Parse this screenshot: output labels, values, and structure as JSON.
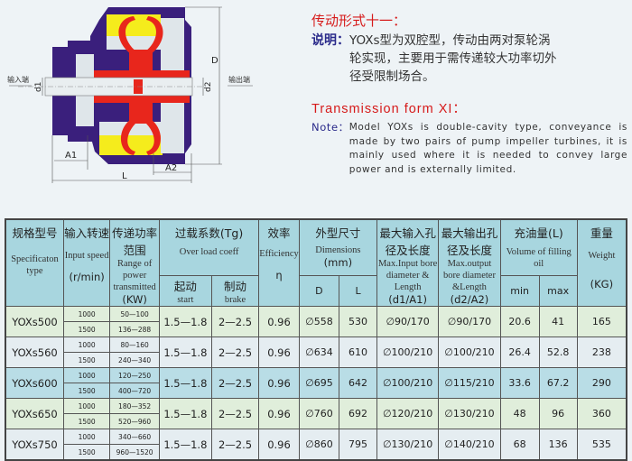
{
  "diagram": {
    "input_label": "输入端",
    "output_label": "输出端",
    "dims": {
      "d1": "d1",
      "d2": "d2",
      "D": "D",
      "A1": "A1",
      "A2": "A2",
      "L": "L"
    },
    "colors": {
      "housing": "#3a1f7c",
      "cavity": "#f5ec1c",
      "impeller": "#e8261c",
      "shaft": "#e9eef0"
    }
  },
  "description": {
    "cn_title": "传动形式十一：",
    "cn_note_label": "说明：",
    "cn_note": "YOXs型为双腔型，传动由两对泵轮涡轮实现，主要用于需传递较大功率切外径受限制场合。",
    "en_title": "Transmission form XI：",
    "en_note_label": "Note：",
    "en_note": "Model YOXs is double-cavity type, conveyance is made by two pairs of pump impeller turbines, it is mainly used where it is needed to convey large power and is externally limited."
  },
  "table": {
    "headers": {
      "spec": {
        "cn": "规格型号",
        "en": "Specificaton type"
      },
      "speed": {
        "cn": "输入转速",
        "en": "Input speed",
        "unit": "(r/min)"
      },
      "power": {
        "cn": "传递功率范围",
        "en": "Range of power transmitted",
        "unit": "(KW)"
      },
      "overload": {
        "cn": "过载系数(Tg)",
        "en": "Over load coeff",
        "start_cn": "起动",
        "start_en": "start",
        "brake_cn": "制动",
        "brake_en": "brake"
      },
      "eff": {
        "cn": "效率",
        "en": "Efficiency",
        "unit": "η"
      },
      "dims": {
        "cn": "外型尺寸",
        "en": "Dimensions",
        "unit": "(mm)",
        "D": "D",
        "L": "L"
      },
      "input_bore": {
        "cn": "最大输入孔径及长度",
        "en": "Max.Input bore diameter & Length",
        "unit": "(d1/A1)"
      },
      "output_bore": {
        "cn": "最大输出孔径及长度",
        "en": "Max.output bore diameter &Length",
        "unit": "(d2/A2)"
      },
      "oil": {
        "cn": "充油量(L)",
        "en": "Volume of filling oil",
        "min": "min",
        "max": "max"
      },
      "weight": {
        "cn": "重量",
        "en": "Weight",
        "unit": "(KG)"
      }
    },
    "rows": [
      {
        "model": "YOXs500",
        "speeds": [
          "1000",
          "1500"
        ],
        "powers": [
          "50—100",
          "136—288"
        ],
        "start": "1.5—1.8",
        "brake": "2—2.5",
        "eff": "0.96",
        "D": "∅558",
        "L": "530",
        "in": "∅90/170",
        "out": "∅90/170",
        "min": "20.6",
        "max": "41",
        "weight": "165"
      },
      {
        "model": "YOXs560",
        "speeds": [
          "1000",
          "1500"
        ],
        "powers": [
          "80—160",
          "240—340"
        ],
        "start": "1.5—1.8",
        "brake": "2—2.5",
        "eff": "0.96",
        "D": "∅634",
        "L": "610",
        "in": "∅100/210",
        "out": "∅100/210",
        "min": "26.4",
        "max": "52.8",
        "weight": "238"
      },
      {
        "model": "YOXs600",
        "speeds": [
          "1000",
          "1500"
        ],
        "powers": [
          "120—250",
          "400—720"
        ],
        "start": "1.5—1.8",
        "brake": "2—2.5",
        "eff": "0.96",
        "D": "∅695",
        "L": "642",
        "in": "∅100/210",
        "out": "∅115/210",
        "min": "33.6",
        "max": "67.2",
        "weight": "290"
      },
      {
        "model": "YOXs650",
        "speeds": [
          "1000",
          "1500"
        ],
        "powers": [
          "180—352",
          "520—960"
        ],
        "start": "1.5—1.8",
        "brake": "2—2.5",
        "eff": "0.96",
        "D": "∅760",
        "L": "692",
        "in": "∅120/210",
        "out": "∅130/210",
        "min": "48",
        "max": "96",
        "weight": "360"
      },
      {
        "model": "YOXs750",
        "speeds": [
          "1000",
          "1500"
        ],
        "powers": [
          "340—660",
          "960—1520"
        ],
        "start": "1.5—1.8",
        "brake": "2—2.5",
        "eff": "0.96",
        "D": "∅860",
        "L": "795",
        "in": "∅130/210",
        "out": "∅140/210",
        "min": "68",
        "max": "136",
        "weight": "535"
      }
    ]
  }
}
